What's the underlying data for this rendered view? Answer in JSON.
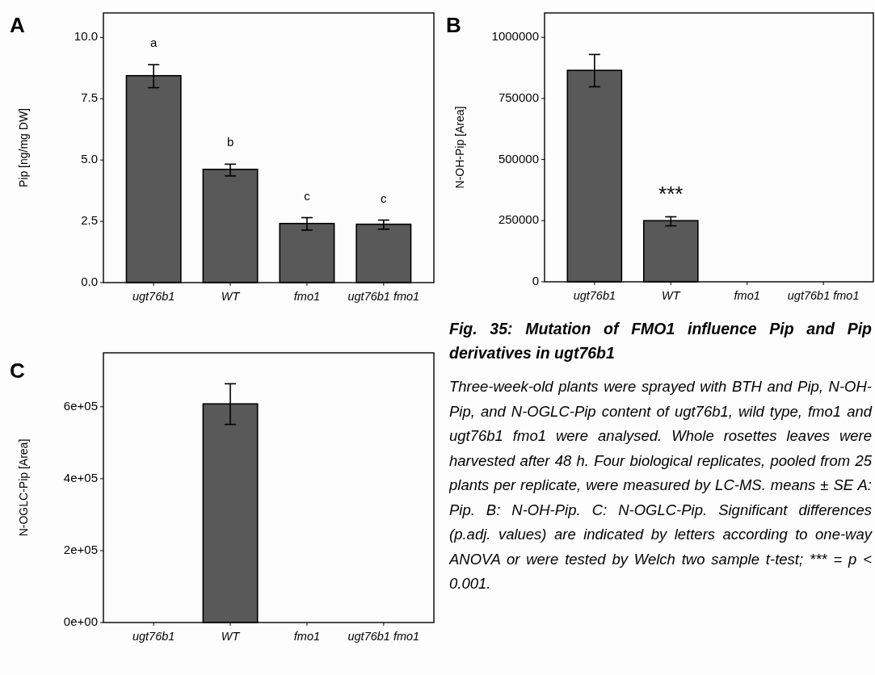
{
  "chart_data": [
    {
      "type": "bar",
      "title": "A",
      "ylabel": "Pip [ng/mg DW]",
      "categories": [
        "ugt76b1",
        "WT",
        "fmo1",
        "ugt76b1 fmo1"
      ],
      "values": [
        8.44,
        4.62,
        2.41,
        2.38
      ],
      "color": "#595959",
      "errors": [
        [
          7.95,
          8.89
        ],
        [
          4.35,
          4.83
        ],
        [
          2.14,
          2.65
        ],
        [
          2.18,
          2.55
        ]
      ],
      "ylim": [
        0,
        11
      ],
      "yticks": [
        {
          "value": 0,
          "label": "0.0"
        },
        {
          "value": 2.5,
          "label": "2.5"
        },
        {
          "value": 5,
          "label": "5.0"
        },
        {
          "value": 7.5,
          "label": "7.5"
        },
        {
          "value": 10,
          "label": "10.0"
        }
      ],
      "grid": false,
      "value_labels": [
        "a",
        "b",
        "c",
        "c"
      ]
    },
    {
      "type": "bar",
      "title": "B",
      "ylabel": "N-OH-Pip [Area]",
      "categories": [
        "ugt76b1",
        "WT",
        "fmo1",
        "ugt76b1 fmo1"
      ],
      "values": [
        865000,
        250000,
        0,
        0
      ],
      "color": "#595959",
      "errors": [
        [
          798000,
          930000
        ],
        [
          229000,
          266000
        ],
        null,
        null
      ],
      "ylim": [
        0,
        1100000
      ],
      "yticks": [
        0,
        250000,
        500000,
        750000,
        1000000
      ],
      "grid": false,
      "value_labels": [
        null,
        "***",
        null,
        null
      ]
    },
    {
      "type": "bar",
      "title": "C",
      "ylabel": "N-OGLC-Pip [Area]",
      "categories": [
        "ugt76b1",
        "WT",
        "fmo1",
        "ugt76b1 fmo1"
      ],
      "values": [
        0,
        608000,
        0,
        0
      ],
      "color": "#595959",
      "errors": [
        null,
        [
          551000,
          664000
        ],
        null,
        null
      ],
      "ylim": [
        0,
        750000
      ],
      "yticks": [
        {
          "value": 0,
          "label": "0e+00"
        },
        {
          "value": 200000,
          "label": "2e+05"
        },
        {
          "value": 400000,
          "label": "4e+05"
        },
        {
          "value": 600000,
          "label": "6e+05"
        }
      ],
      "grid": false
    },
    {
      "type": "other",
      "title": "Fig. 35: Mutation of FMO1 influence Pip and Pip derivatives in ugt76b1",
      "annotations": [
        "Three-week-old plants were sprayed with BTH and Pip, N-OH-Pip, and N-OGLC-Pip content of ugt76b1, wild type, fmo1 and ugt76b1 fmo1 were analysed. Whole rosettes leaves were harvested after 48 h. Four biological replicates, pooled from 25 plants per replicate, were measured by LC-MS. means ± SE A: Pip. B: N-OH-Pip. C: N-OGLC-Pip. Significant differences (p.adj. values) are indicated by letters according to one-way ANOVA or were tested by Welch two sample t-test; *** = p < 0.001."
      ]
    }
  ]
}
